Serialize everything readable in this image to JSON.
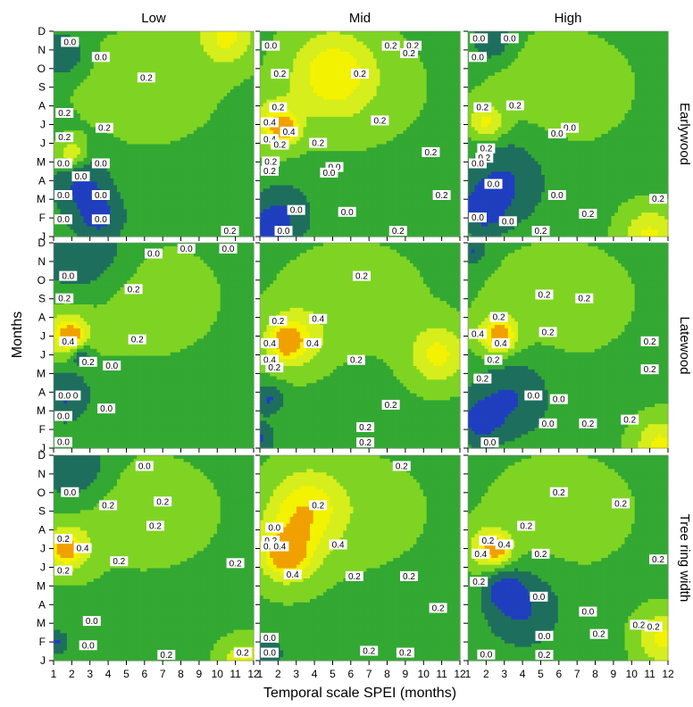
{
  "chart_data": {
    "type": "heatmap",
    "x_axis_label": "Temporal scale SPEI (months)",
    "y_axis_label": "Months",
    "x_ticks": [
      "1",
      "2",
      "3",
      "4",
      "5",
      "6",
      "7",
      "8",
      "9",
      "10",
      "11",
      "12"
    ],
    "y_ticks": [
      "D",
      "N",
      "O",
      "S",
      "A",
      "J",
      "J",
      "M",
      "A",
      "M",
      "F",
      "J"
    ],
    "column_titles": [
      "Low",
      "Mid",
      "High"
    ],
    "row_titles": [
      "Earlywood",
      "Latewood",
      "Tree ring width"
    ],
    "contour_levels": [
      0.0,
      0.2,
      0.4
    ],
    "contour_labels": [
      "0.0",
      "0.2",
      "0.4"
    ],
    "palette": [
      "#1f3fbf",
      "#1e6e5e",
      "#33a833",
      "#7fd423",
      "#d6ee1c",
      "#f3f200",
      "#f0a100"
    ],
    "x_range": [
      1,
      12
    ],
    "grid": false,
    "panels": [
      {
        "row": 0,
        "col": 0,
        "lows": [
          [
            1.5,
            1.2,
            1.1
          ],
          [
            2.5,
            8.2,
            1.6
          ],
          [
            3.5,
            10.0,
            1.4
          ]
        ],
        "highs": [
          [
            2.0,
            6.6,
            0.8
          ],
          [
            10.5,
            0.3,
            1.5
          ]
        ],
        "labels": [
          {
            "x": 1.9,
            "y": 0.6,
            "t": "0.0"
          },
          {
            "x": 3.6,
            "y": 1.4,
            "t": "0.0"
          },
          {
            "x": 6.1,
            "y": 2.5,
            "t": "0.2"
          },
          {
            "x": 1.6,
            "y": 4.4,
            "t": "0.2"
          },
          {
            "x": 3.8,
            "y": 5.2,
            "t": "0.2"
          },
          {
            "x": 1.6,
            "y": 5.7,
            "t": "0.2"
          },
          {
            "x": 1.3,
            "y": 7.1,
            "t": "0.0"
          },
          {
            "x": 3.6,
            "y": 7.1,
            "t": "0.0"
          },
          {
            "x": 2.5,
            "y": 7.8,
            "t": "0.0"
          },
          {
            "x": 1.3,
            "y": 8.8,
            "t": "0.0"
          },
          {
            "x": 3.6,
            "y": 8.8,
            "t": "0.0"
          },
          {
            "x": 1.3,
            "y": 10.1,
            "t": "0.0"
          },
          {
            "x": 3.6,
            "y": 10.1,
            "t": "0.0"
          },
          {
            "x": 10.7,
            "y": 11.0,
            "t": "0.2"
          }
        ]
      },
      {
        "row": 0,
        "col": 1,
        "lows": [
          [
            2.2,
            9.8,
            1.6
          ],
          [
            1.2,
            10.8,
            1.0
          ]
        ],
        "highs": [
          [
            1.8,
            5.0,
            1.3
          ],
          [
            2.4,
            5.2,
            0.7
          ],
          [
            5.0,
            2.2,
            2.2
          ]
        ],
        "labels": [
          {
            "x": 1.6,
            "y": 0.8,
            "t": "0.0"
          },
          {
            "x": 8.2,
            "y": 0.8,
            "t": "0.2"
          },
          {
            "x": 9.4,
            "y": 0.8,
            "t": "0.2"
          },
          {
            "x": 9.2,
            "y": 1.2,
            "t": "0.2"
          },
          {
            "x": 2.1,
            "y": 2.3,
            "t": "0.2"
          },
          {
            "x": 6.5,
            "y": 2.3,
            "t": "0.2"
          },
          {
            "x": 2.0,
            "y": 4.1,
            "t": "0.2"
          },
          {
            "x": 1.4,
            "y": 4.9,
            "t": "0.4"
          },
          {
            "x": 2.6,
            "y": 5.4,
            "t": "0.4"
          },
          {
            "x": 1.3,
            "y": 5.8,
            "t": "0.4"
          },
          {
            "x": 7.6,
            "y": 4.8,
            "t": "0.2"
          },
          {
            "x": 2.1,
            "y": 6.1,
            "t": "0.2"
          },
          {
            "x": 4.2,
            "y": 6.0,
            "t": "0.2"
          },
          {
            "x": 1.6,
            "y": 7.0,
            "t": "0.2"
          },
          {
            "x": 5.1,
            "y": 7.3,
            "t": "0.0"
          },
          {
            "x": 4.8,
            "y": 7.6,
            "t": "0.0"
          },
          {
            "x": 10.4,
            "y": 6.5,
            "t": "0.2"
          },
          {
            "x": 1.2,
            "y": 7.5,
            "t": "0.2"
          },
          {
            "x": 3.0,
            "y": 9.6,
            "t": "0.0"
          },
          {
            "x": 5.8,
            "y": 9.7,
            "t": "0.0"
          },
          {
            "x": 11.0,
            "y": 8.8,
            "t": "0.2"
          },
          {
            "x": 2.3,
            "y": 10.8,
            "t": "0.0"
          },
          {
            "x": 8.6,
            "y": 10.8,
            "t": "0.2"
          }
        ]
      },
      {
        "row": 0,
        "col": 2,
        "lows": [
          [
            3.0,
            8.0,
            2.2
          ],
          [
            1.8,
            9.6,
            1.3
          ],
          [
            2.3,
            0.5,
            1.0
          ]
        ],
        "highs": [
          [
            2.0,
            4.9,
            1.0
          ],
          [
            11.0,
            11.0,
            1.5
          ]
        ],
        "labels": [
          {
            "x": 1.6,
            "y": 0.4,
            "t": "0.0"
          },
          {
            "x": 3.3,
            "y": 0.4,
            "t": "0.0"
          },
          {
            "x": 1.3,
            "y": 1.4,
            "t": "0.0"
          },
          {
            "x": 1.8,
            "y": 4.1,
            "t": "0.2"
          },
          {
            "x": 3.6,
            "y": 4.0,
            "t": "0.2"
          },
          {
            "x": 6.6,
            "y": 5.2,
            "t": "0.0"
          },
          {
            "x": 5.9,
            "y": 5.5,
            "t": "0.0"
          },
          {
            "x": 2.0,
            "y": 6.3,
            "t": "0.2"
          },
          {
            "x": 1.9,
            "y": 6.8,
            "t": "0.2"
          },
          {
            "x": 1.2,
            "y": 7.1,
            "t": "0.0"
          },
          {
            "x": 2.4,
            "y": 8.2,
            "t": "0.0"
          },
          {
            "x": 5.9,
            "y": 8.8,
            "t": "0.0"
          },
          {
            "x": 11.5,
            "y": 9.0,
            "t": "0.2"
          },
          {
            "x": 1.4,
            "y": 10.0,
            "t": "0.0"
          },
          {
            "x": 3.2,
            "y": 10.2,
            "t": "0.0"
          },
          {
            "x": 7.6,
            "y": 9.8,
            "t": "0.2"
          },
          {
            "x": 5.0,
            "y": 10.8,
            "t": "0.2"
          }
        ]
      },
      {
        "row": 1,
        "col": 0,
        "lows": [
          [
            2.5,
            0.3,
            2.4
          ],
          [
            1.6,
            8.2,
            1.4
          ],
          [
            2.5,
            6.0,
            0.6
          ]
        ],
        "highs": [
          [
            1.7,
            4.9,
            1.3
          ],
          [
            2.0,
            5.0,
            0.6
          ]
        ],
        "labels": [
          {
            "x": 6.5,
            "y": 0.6,
            "t": "0.0"
          },
          {
            "x": 8.3,
            "y": 0.3,
            "t": "0.0"
          },
          {
            "x": 10.6,
            "y": 0.3,
            "t": "0.0"
          },
          {
            "x": 1.8,
            "y": 1.8,
            "t": "0.0"
          },
          {
            "x": 1.6,
            "y": 3.0,
            "t": "0.2"
          },
          {
            "x": 5.4,
            "y": 2.5,
            "t": "0.2"
          },
          {
            "x": 1.8,
            "y": 5.3,
            "t": "0.4"
          },
          {
            "x": 5.6,
            "y": 5.2,
            "t": "0.2"
          },
          {
            "x": 2.9,
            "y": 6.4,
            "t": "0.2"
          },
          {
            "x": 4.2,
            "y": 6.6,
            "t": "0.0"
          },
          {
            "x": 2.0,
            "y": 8.2,
            "t": "0.0"
          },
          {
            "x": 1.6,
            "y": 8.2,
            "t": "0.0"
          },
          {
            "x": 3.9,
            "y": 8.9,
            "t": "0.0"
          },
          {
            "x": 1.3,
            "y": 9.3,
            "t": "0.0"
          },
          {
            "x": 1.4,
            "y": 10.7,
            "t": "0.0"
          }
        ]
      },
      {
        "row": 1,
        "col": 1,
        "lows": [
          [
            1.5,
            8.4,
            0.8
          ],
          [
            1.0,
            10.5,
            0.8
          ]
        ],
        "highs": [
          [
            2.8,
            5.2,
            1.6
          ],
          [
            2.4,
            5.3,
            0.8
          ],
          [
            10.8,
            6.0,
            1.6
          ]
        ],
        "labels": [
          {
            "x": 6.6,
            "y": 1.8,
            "t": "0.2"
          },
          {
            "x": 2.0,
            "y": 4.2,
            "t": "0.2"
          },
          {
            "x": 4.2,
            "y": 4.1,
            "t": "0.4"
          },
          {
            "x": 1.3,
            "y": 5.4,
            "t": "0.4"
          },
          {
            "x": 3.9,
            "y": 5.4,
            "t": "0.4"
          },
          {
            "x": 1.3,
            "y": 6.3,
            "t": "0.4"
          },
          {
            "x": 6.3,
            "y": 6.3,
            "t": "0.2"
          },
          {
            "x": 1.8,
            "y": 6.7,
            "t": "0.2"
          },
          {
            "x": 8.2,
            "y": 8.7,
            "t": "0.2"
          },
          {
            "x": 6.8,
            "y": 9.9,
            "t": "0.2"
          },
          {
            "x": 6.8,
            "y": 10.9,
            "t": "0.2"
          }
        ]
      },
      {
        "row": 1,
        "col": 2,
        "lows": [
          [
            3.3,
            8.3,
            2.1
          ],
          [
            1.6,
            9.6,
            1.2
          ],
          [
            1.2,
            0.4,
            0.8
          ]
        ],
        "highs": [
          [
            2.6,
            5.0,
            1.2
          ],
          [
            2.8,
            5.0,
            0.6
          ],
          [
            11.6,
            10.8,
            1.4
          ]
        ],
        "labels": [
          {
            "x": 5.2,
            "y": 2.8,
            "t": "0.2"
          },
          {
            "x": 7.4,
            "y": 3.0,
            "t": "0.2"
          },
          {
            "x": 2.7,
            "y": 4.0,
            "t": "0.2"
          },
          {
            "x": 1.5,
            "y": 4.9,
            "t": "0.4"
          },
          {
            "x": 2.8,
            "y": 5.4,
            "t": "0.4"
          },
          {
            "x": 5.4,
            "y": 4.8,
            "t": "0.2"
          },
          {
            "x": 2.4,
            "y": 6.3,
            "t": "0.2"
          },
          {
            "x": 11.0,
            "y": 5.3,
            "t": "0.2"
          },
          {
            "x": 11.0,
            "y": 6.8,
            "t": "0.2"
          },
          {
            "x": 1.8,
            "y": 7.3,
            "t": "0.2"
          },
          {
            "x": 4.6,
            "y": 8.2,
            "t": "0.0"
          },
          {
            "x": 6.0,
            "y": 8.4,
            "t": "0.0"
          },
          {
            "x": 5.4,
            "y": 9.7,
            "t": "0.0"
          },
          {
            "x": 7.6,
            "y": 9.7,
            "t": "0.2"
          },
          {
            "x": 9.9,
            "y": 9.5,
            "t": "0.2"
          },
          {
            "x": 2.2,
            "y": 10.8,
            "t": "0.0"
          }
        ]
      },
      {
        "row": 2,
        "col": 0,
        "lows": [
          [
            2.0,
            0.5,
            1.8
          ],
          [
            1.2,
            10.0,
            0.6
          ]
        ],
        "highs": [
          [
            1.8,
            5.0,
            1.3
          ],
          [
            1.6,
            5.0,
            0.6
          ],
          [
            11.5,
            11.3,
            1.3
          ]
        ],
        "labels": [
          {
            "x": 6.0,
            "y": 0.6,
            "t": "0.0"
          },
          {
            "x": 1.9,
            "y": 2.0,
            "t": "0.0"
          },
          {
            "x": 4.0,
            "y": 2.7,
            "t": "0.2"
          },
          {
            "x": 7.0,
            "y": 2.5,
            "t": "0.2"
          },
          {
            "x": 6.6,
            "y": 3.8,
            "t": "0.2"
          },
          {
            "x": 1.3,
            "y": 4.5,
            "t": "0.2"
          },
          {
            "x": 2.6,
            "y": 5.0,
            "t": "0.4"
          },
          {
            "x": 4.6,
            "y": 5.7,
            "t": "0.2"
          },
          {
            "x": 1.5,
            "y": 6.2,
            "t": "0.2"
          },
          {
            "x": 11.0,
            "y": 5.8,
            "t": "0.2"
          },
          {
            "x": 3.1,
            "y": 8.9,
            "t": "0.0"
          },
          {
            "x": 2.9,
            "y": 10.2,
            "t": "0.0"
          },
          {
            "x": 7.2,
            "y": 11.1,
            "t": "0.2"
          },
          {
            "x": 11.4,
            "y": 10.6,
            "t": "0.2"
          }
        ]
      },
      {
        "row": 2,
        "col": 1,
        "lows": [
          [
            1.3,
            10.6,
            0.9
          ]
        ],
        "highs": [
          [
            2.5,
            5.2,
            1.8
          ],
          [
            2.5,
            5.3,
            0.9
          ],
          [
            3.5,
            2.8,
            2.0
          ]
        ],
        "labels": [
          {
            "x": 8.8,
            "y": 0.6,
            "t": "0.2"
          },
          {
            "x": 4.2,
            "y": 2.7,
            "t": "0.2"
          },
          {
            "x": 1.8,
            "y": 3.9,
            "t": "0.0"
          },
          {
            "x": 1.6,
            "y": 4.6,
            "t": "0.2"
          },
          {
            "x": 1.3,
            "y": 4.9,
            "t": "0.2"
          },
          {
            "x": 2.1,
            "y": 4.9,
            "t": "0.4"
          },
          {
            "x": 5.3,
            "y": 4.8,
            "t": "0.4"
          },
          {
            "x": 2.8,
            "y": 6.4,
            "t": "0.4"
          },
          {
            "x": 6.2,
            "y": 6.5,
            "t": "0.2"
          },
          {
            "x": 9.2,
            "y": 6.5,
            "t": "0.2"
          },
          {
            "x": 10.8,
            "y": 8.2,
            "t": "0.2"
          },
          {
            "x": 1.3,
            "y": 9.8,
            "t": "0.0"
          },
          {
            "x": 1.3,
            "y": 10.6,
            "t": "0.0"
          },
          {
            "x": 7.0,
            "y": 10.5,
            "t": "0.2"
          },
          {
            "x": 9.0,
            "y": 10.6,
            "t": "0.2"
          }
        ]
      },
      {
        "row": 2,
        "col": 2,
        "lows": [
          [
            4.0,
            8.2,
            2.0
          ],
          [
            3.0,
            7.2,
            1.0
          ]
        ],
        "highs": [
          [
            2.2,
            5.0,
            1.2
          ],
          [
            2.6,
            5.0,
            0.6
          ],
          [
            11.7,
            9.8,
            1.4
          ]
        ],
        "labels": [
          {
            "x": 6.0,
            "y": 2.0,
            "t": "0.2"
          },
          {
            "x": 9.4,
            "y": 2.6,
            "t": "0.2"
          },
          {
            "x": 4.2,
            "y": 3.8,
            "t": "0.2"
          },
          {
            "x": 2.1,
            "y": 4.6,
            "t": "0.2"
          },
          {
            "x": 3.0,
            "y": 4.8,
            "t": "0.4"
          },
          {
            "x": 1.7,
            "y": 5.3,
            "t": "0.4"
          },
          {
            "x": 5.0,
            "y": 5.3,
            "t": "0.2"
          },
          {
            "x": 11.6,
            "y": 5.6,
            "t": "0.2"
          },
          {
            "x": 1.6,
            "y": 6.8,
            "t": "0.2"
          },
          {
            "x": 4.9,
            "y": 7.6,
            "t": "0.0"
          },
          {
            "x": 7.6,
            "y": 8.4,
            "t": "0.0"
          },
          {
            "x": 5.2,
            "y": 9.7,
            "t": "0.0"
          },
          {
            "x": 10.4,
            "y": 9.1,
            "t": "0.2"
          },
          {
            "x": 8.2,
            "y": 9.6,
            "t": "0.2"
          },
          {
            "x": 11.2,
            "y": 9.2,
            "t": "0.2"
          },
          {
            "x": 2.0,
            "y": 10.7,
            "t": "0.0"
          },
          {
            "x": 5.2,
            "y": 11.0,
            "t": "0.2"
          }
        ]
      }
    ]
  }
}
